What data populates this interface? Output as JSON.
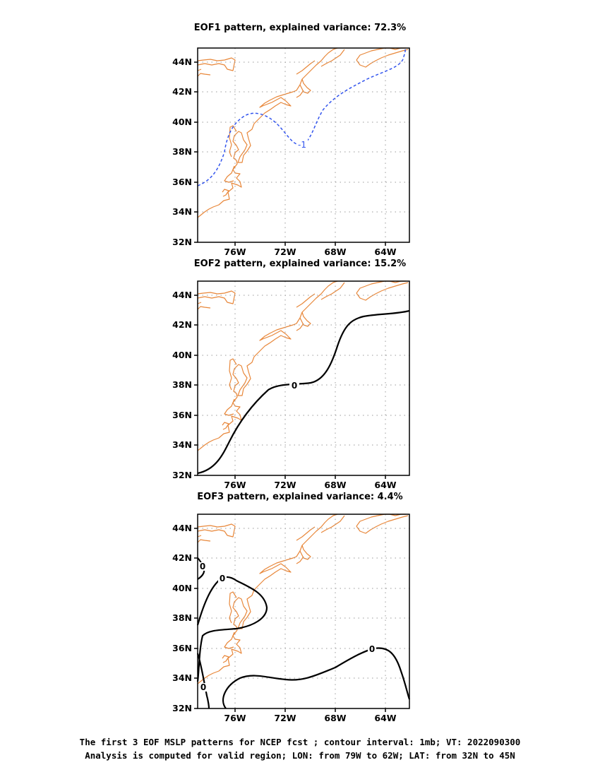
{
  "panels": [
    {
      "title": "EOF1 pattern, explained variance: 72.3%",
      "contour_labels": [
        "-1"
      ],
      "contour_color": "#3355ee"
    },
    {
      "title": "EOF2 pattern, explained variance: 15.2%",
      "contour_labels": [
        "0"
      ],
      "contour_color": "#000000"
    },
    {
      "title": "EOF3 pattern, explained variance: 4.4%",
      "contour_labels": [
        "0",
        "0",
        "0",
        "0"
      ],
      "contour_color": "#000000"
    }
  ],
  "axes": {
    "lat_ticks": [
      "32N",
      "34N",
      "36N",
      "38N",
      "40N",
      "42N",
      "44N"
    ],
    "lon_ticks": [
      "76W",
      "72W",
      "68W",
      "64W"
    ],
    "lat_range": [
      32,
      45
    ],
    "lon_range": [
      -79,
      -62
    ]
  },
  "colors": {
    "coastline": "#e8873a",
    "grid": "#999999"
  },
  "caption": {
    "line1": "The first 3 EOF MSLP patterns for NCEP fcst ; contour interval: 1mb; VT: 2022090300",
    "line2": "Analysis is computed for valid region; LON: from 79W to 62W; LAT: from 32N to 45N"
  }
}
